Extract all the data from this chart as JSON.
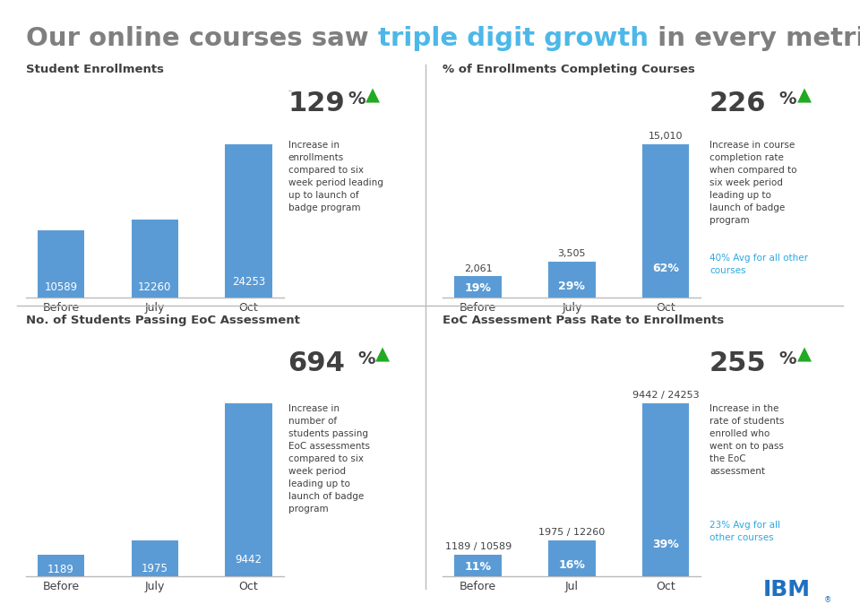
{
  "title_parts": [
    {
      "text": "Our online courses saw ",
      "color": "#7f7f7f"
    },
    {
      "text": "triple digit growth",
      "color": "#4db8e8"
    },
    {
      "text": " in every metric",
      "color": "#7f7f7f"
    }
  ],
  "title_fontsize": 21,
  "bar_color": "#5b9bd5",
  "text_color_dark": "#404040",
  "text_color_light": "#ffffff",
  "green_arrow": "#22aa22",
  "cyan_text": "#2ba8e0",
  "divider_color": "#bbbbbb",
  "bg_color": "#ffffff",
  "panel1": {
    "title": "Student Enrollments",
    "categories": [
      "Before",
      "July",
      "Oct"
    ],
    "values": [
      10589,
      12260,
      24253
    ],
    "bar_labels": [
      "10589",
      "12260",
      "24253"
    ],
    "pct_labels": null,
    "above_labels": null,
    "growth": "129%",
    "growth_desc": "Increase in\nenrollments\ncompared to six\nweek period leading\nup to launch of\nbadge program",
    "avg_note": null
  },
  "panel2": {
    "title": "% of Enrollments Completing Courses",
    "categories": [
      "Before",
      "July",
      "Oct"
    ],
    "values": [
      2061,
      3505,
      15010
    ],
    "bar_labels": [
      "19%",
      "29%",
      "62%"
    ],
    "pct_labels": [
      "19%",
      "29%",
      "62%"
    ],
    "above_labels": [
      "2,061",
      "3,505",
      "15,010"
    ],
    "growth": "226%",
    "growth_desc": "Increase in course\ncompletion rate\nwhen compared to\nsix week period\nleading up to\nlaunch of badge\nprogram",
    "avg_note": "40% Avg for all other\ncourses"
  },
  "panel3": {
    "title": "No. of Students Passing EoC Assessment",
    "categories": [
      "Before",
      "July",
      "Oct"
    ],
    "values": [
      1189,
      1975,
      9442
    ],
    "bar_labels": [
      "1189",
      "1975",
      "9442"
    ],
    "pct_labels": null,
    "above_labels": null,
    "growth": "694%",
    "growth_desc": "Increase in\nnumber of\nstudents passing\nEoC assessments\ncompared to six\nweek period\nleading up to\nlaunch of badge\nprogram",
    "avg_note": null
  },
  "panel4": {
    "title": "EoC Assessment Pass Rate to Enrollments",
    "categories": [
      "Before",
      "Jul",
      "Oct"
    ],
    "values": [
      1189,
      1975,
      9442
    ],
    "bar_labels": [
      "11%",
      "16%",
      "39%"
    ],
    "pct_labels": [
      "11%",
      "16%",
      "39%"
    ],
    "above_labels": [
      "1189 / 10589",
      "1975 / 12260",
      "9442 / 24253"
    ],
    "growth": "255%",
    "growth_desc": "Increase in the\nrate of students\nenrolled who\nwent on to pass\nthe EoC\nassessment",
    "avg_note": "23% Avg for all\nother courses"
  }
}
